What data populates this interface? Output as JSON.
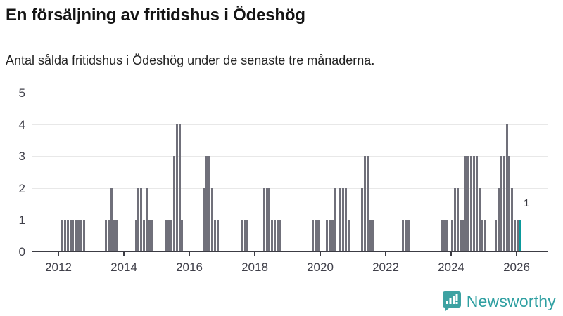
{
  "header": {
    "title": "En försäljning av fritidshus i Ödeshög",
    "subtitle": "Antal sålda fritidshus i Ödeshög under de senaste tre månaderna."
  },
  "chart_data": {
    "type": "bar",
    "title": "En försäljning av fritidshus i Ödeshög",
    "subtitle": "Antal sålda fritidshus i Ödeshög under de senaste tre månaderna.",
    "xlabel": "",
    "ylabel": "",
    "ylim": [
      0,
      5
    ],
    "yticks": [
      0,
      1,
      2,
      3,
      4,
      5
    ],
    "xtick_years": [
      "2012",
      "2014",
      "2016",
      "2018",
      "2020",
      "2022",
      "2024",
      "2026"
    ],
    "x_domain_years": [
      2011.2,
      2026.97
    ],
    "grid": "horizontal",
    "legend": "none",
    "bar_color": "#70707a",
    "highlight_color": "#0a9a9c",
    "grid_color": "#e8e8e8",
    "axis_color": "#3c3c44",
    "text_color": "#40404a",
    "last_point_label": "1",
    "points_format": [
      "year",
      "month",
      "value"
    ],
    "points": [
      [
        2012,
        2,
        1
      ],
      [
        2012,
        3,
        1
      ],
      [
        2012,
        4,
        1
      ],
      [
        2012,
        5,
        1
      ],
      [
        2012,
        6,
        1
      ],
      [
        2012,
        7,
        1
      ],
      [
        2012,
        8,
        1
      ],
      [
        2012,
        9,
        1
      ],
      [
        2012,
        10,
        1
      ],
      [
        2013,
        6,
        1
      ],
      [
        2013,
        7,
        1
      ],
      [
        2013,
        8,
        2
      ],
      [
        2013,
        9,
        1
      ],
      [
        2013,
        10,
        1
      ],
      [
        2014,
        5,
        1
      ],
      [
        2014,
        6,
        2
      ],
      [
        2014,
        7,
        2
      ],
      [
        2014,
        8,
        1
      ],
      [
        2014,
        9,
        2
      ],
      [
        2014,
        10,
        1
      ],
      [
        2014,
        11,
        1
      ],
      [
        2015,
        4,
        1
      ],
      [
        2015,
        5,
        1
      ],
      [
        2015,
        6,
        1
      ],
      [
        2015,
        7,
        3
      ],
      [
        2015,
        8,
        4
      ],
      [
        2015,
        9,
        4
      ],
      [
        2015,
        10,
        1
      ],
      [
        2016,
        6,
        2
      ],
      [
        2016,
        7,
        3
      ],
      [
        2016,
        8,
        3
      ],
      [
        2016,
        9,
        2
      ],
      [
        2016,
        10,
        1
      ],
      [
        2016,
        11,
        1
      ],
      [
        2017,
        8,
        1
      ],
      [
        2017,
        9,
        1
      ],
      [
        2017,
        10,
        1
      ],
      [
        2018,
        4,
        2
      ],
      [
        2018,
        5,
        2
      ],
      [
        2018,
        6,
        2
      ],
      [
        2018,
        7,
        1
      ],
      [
        2018,
        8,
        1
      ],
      [
        2018,
        9,
        1
      ],
      [
        2018,
        10,
        1
      ],
      [
        2019,
        10,
        1
      ],
      [
        2019,
        11,
        1
      ],
      [
        2019,
        12,
        1
      ],
      [
        2020,
        3,
        1
      ],
      [
        2020,
        4,
        1
      ],
      [
        2020,
        5,
        1
      ],
      [
        2020,
        6,
        2
      ],
      [
        2020,
        8,
        2
      ],
      [
        2020,
        9,
        2
      ],
      [
        2020,
        10,
        2
      ],
      [
        2020,
        11,
        1
      ],
      [
        2021,
        4,
        2
      ],
      [
        2021,
        5,
        3
      ],
      [
        2021,
        6,
        3
      ],
      [
        2021,
        7,
        1
      ],
      [
        2021,
        8,
        1
      ],
      [
        2022,
        7,
        1
      ],
      [
        2022,
        8,
        1
      ],
      [
        2022,
        9,
        1
      ],
      [
        2023,
        9,
        1
      ],
      [
        2023,
        10,
        1
      ],
      [
        2023,
        11,
        1
      ],
      [
        2024,
        1,
        1
      ],
      [
        2024,
        2,
        2
      ],
      [
        2024,
        3,
        2
      ],
      [
        2024,
        4,
        1
      ],
      [
        2024,
        5,
        1
      ],
      [
        2024,
        6,
        3
      ],
      [
        2024,
        7,
        3
      ],
      [
        2024,
        8,
        3
      ],
      [
        2024,
        9,
        3
      ],
      [
        2024,
        10,
        3
      ],
      [
        2024,
        11,
        2
      ],
      [
        2024,
        12,
        1
      ],
      [
        2025,
        1,
        1
      ],
      [
        2025,
        5,
        1
      ],
      [
        2025,
        6,
        2
      ],
      [
        2025,
        7,
        3
      ],
      [
        2025,
        8,
        3
      ],
      [
        2025,
        9,
        4
      ],
      [
        2025,
        10,
        3
      ],
      [
        2025,
        11,
        2
      ],
      [
        2025,
        12,
        1
      ],
      [
        2026,
        1,
        1
      ],
      [
        2026,
        2,
        1
      ]
    ]
  },
  "branding": {
    "name": "Newsworthy",
    "color": "#2e9fa1",
    "icon": "newsworthy-bubble-chart-icon"
  }
}
